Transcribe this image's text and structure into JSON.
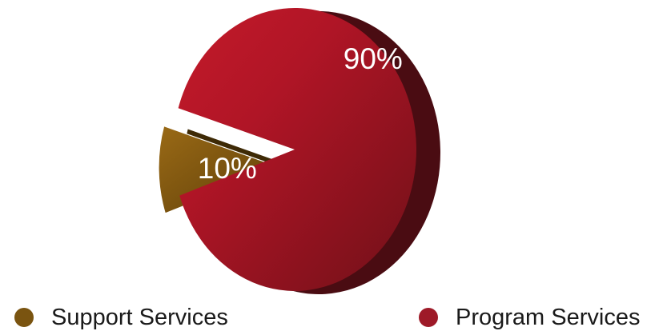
{
  "chart_data": {
    "type": "pie",
    "title": "",
    "labels": [
      "Support Services",
      "Program Services"
    ],
    "values": [
      10,
      90
    ],
    "data_labels": [
      "10%",
      "90%"
    ],
    "colors": [
      "#7a5410",
      "#9e1a28"
    ],
    "style": "3d-exploded",
    "legend_position": "bottom"
  },
  "legend": {
    "items": [
      {
        "label": "Support Services",
        "color": "#7a5410"
      },
      {
        "label": "Program Services",
        "color": "#9e1a28"
      }
    ]
  }
}
